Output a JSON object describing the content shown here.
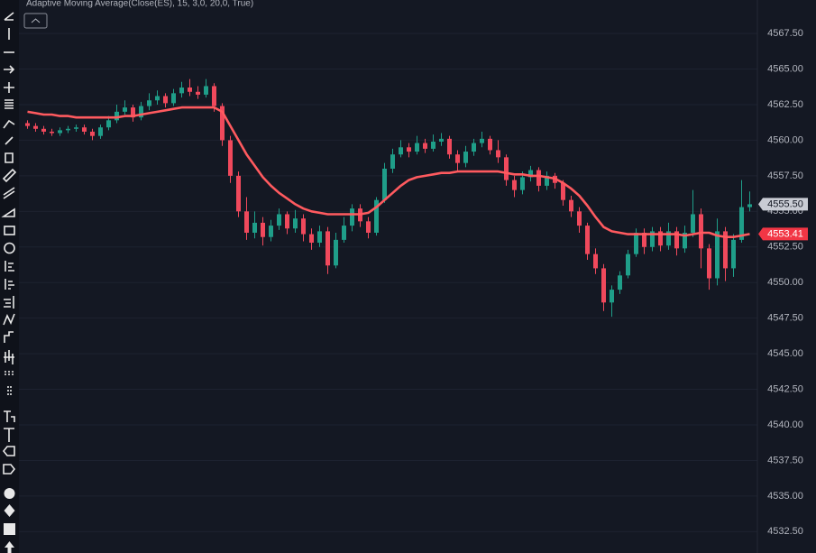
{
  "chart_data": {
    "type": "candlestick",
    "title": "Adaptive Moving Average(Close(ES), 15, 3,0, 20,0, True)",
    "up_color": "#1f9e89",
    "down_color": "#f0495c",
    "line_color": "#ff5a5f",
    "grid": true,
    "ylim": [
      4531.0,
      4569.85
    ],
    "yticks": [
      {
        "value": 4532.5,
        "label": "4532.50"
      },
      {
        "value": 4535,
        "label": "4535.00"
      },
      {
        "value": 4537.5,
        "label": "4537.50"
      },
      {
        "value": 4540,
        "label": "4540.00"
      },
      {
        "value": 4542.5,
        "label": "4542.50"
      },
      {
        "value": 4545,
        "label": "4545.00"
      },
      {
        "value": 4547.5,
        "label": "4547.50"
      },
      {
        "value": 4550,
        "label": "4550.00"
      },
      {
        "value": 4552.5,
        "label": "4552.50"
      },
      {
        "value": 4555,
        "label": "4555.00"
      },
      {
        "value": 4557.5,
        "label": "4557.50"
      },
      {
        "value": 4560,
        "label": "4560.00"
      },
      {
        "value": 4562.5,
        "label": "4562.50"
      },
      {
        "value": 4565,
        "label": "4565.00"
      },
      {
        "value": 4567.5,
        "label": "4567.50"
      }
    ],
    "open": [
      4561.2,
      4561.0,
      4560.8,
      4560.6,
      4560.5,
      4560.7,
      4560.8,
      4560.9,
      4560.6,
      4560.3,
      4560.9,
      4561.4,
      4562.0,
      4562.3,
      4561.6,
      4562.4,
      4562.8,
      4563.1,
      4562.6,
      4563.3,
      4563.7,
      4563.4,
      4563.2,
      4563.8,
      4562.4,
      4560.0,
      4557.5,
      4555.0,
      4553.5,
      4554.2,
      4553.2,
      4554.0,
      4554.8,
      4553.8,
      4554.5,
      4553.4,
      4552.8,
      4553.6,
      4551.2,
      4553.0,
      4554.0,
      4555.2,
      4554.3,
      4553.5,
      4555.8,
      4558.0,
      4559.0,
      4559.5,
      4559.2,
      4559.8,
      4559.4,
      4559.9,
      4560.1,
      4559.0,
      4558.4,
      4559.2,
      4559.8,
      4560.1,
      4559.3,
      4558.8,
      4557.2,
      4556.5,
      4557.4,
      4557.9,
      4556.8,
      4557.5,
      4557.0,
      4555.8,
      4555.0,
      4554.0,
      4552.0,
      4551.0,
      4548.6,
      4549.5,
      4550.5,
      4552.0,
      4553.5,
      4552.5,
      4553.6,
      4552.6,
      4553.6,
      4552.4,
      4553.5,
      4554.8,
      4552.4,
      4550.3,
      4553.6,
      4551.0,
      4553.0,
      4555.3
    ],
    "high": [
      4561.4,
      4561.2,
      4561.0,
      4560.8,
      4560.9,
      4561.0,
      4561.1,
      4561.1,
      4560.8,
      4561.1,
      4561.7,
      4562.5,
      4562.8,
      4562.5,
      4562.7,
      4563.3,
      4563.5,
      4563.3,
      4563.6,
      4564.1,
      4564.3,
      4563.8,
      4564.3,
      4564.0,
      4562.6,
      4560.3,
      4557.8,
      4556.0,
      4555.0,
      4554.6,
      4554.4,
      4555.2,
      4555.0,
      4555.1,
      4554.8,
      4553.8,
      4554.0,
      4553.9,
      4553.5,
      4554.6,
      4555.5,
      4555.5,
      4554.6,
      4556.0,
      4558.4,
      4559.4,
      4560.0,
      4559.8,
      4560.3,
      4560.1,
      4560.4,
      4560.5,
      4560.3,
      4559.3,
      4559.6,
      4560.1,
      4560.6,
      4560.3,
      4560.0,
      4559.0,
      4557.5,
      4557.8,
      4558.2,
      4558.1,
      4557.8,
      4557.7,
      4557.2,
      4556.1,
      4555.3,
      4554.2,
      4552.4,
      4551.3,
      4549.8,
      4550.8,
      4552.3,
      4553.8,
      4553.8,
      4553.9,
      4553.9,
      4554.2,
      4553.9,
      4554.0,
      4556.5,
      4555.2,
      4552.7,
      4554.5,
      4553.9,
      4553.4,
      4557.2,
      4556.4
    ],
    "low": [
      4560.8,
      4560.6,
      4560.4,
      4560.3,
      4560.3,
      4560.5,
      4560.6,
      4560.4,
      4560.0,
      4560.1,
      4560.7,
      4561.2,
      4561.8,
      4561.3,
      4561.4,
      4562.1,
      4562.5,
      4562.3,
      4562.4,
      4563.0,
      4563.1,
      4562.9,
      4563.0,
      4562.0,
      4559.6,
      4557.0,
      4554.6,
      4553.0,
      4553.1,
      4552.6,
      4552.9,
      4553.7,
      4553.4,
      4553.5,
      4552.9,
      4552.3,
      4552.5,
      4550.6,
      4551.0,
      4552.8,
      4553.6,
      4553.9,
      4553.1,
      4553.3,
      4555.6,
      4557.7,
      4558.8,
      4558.8,
      4559.0,
      4559.1,
      4559.2,
      4559.6,
      4558.7,
      4557.8,
      4558.1,
      4558.9,
      4559.5,
      4559.0,
      4558.4,
      4556.8,
      4556.0,
      4556.2,
      4557.1,
      4556.4,
      4556.5,
      4556.6,
      4555.4,
      4554.6,
      4553.5,
      4551.6,
      4550.6,
      4548.0,
      4547.6,
      4549.2,
      4550.3,
      4551.8,
      4552.0,
      4552.2,
      4552.2,
      4552.3,
      4551.9,
      4552.1,
      4553.2,
      4551.0,
      4549.5,
      4549.8,
      4550.1,
      4550.4,
      4552.8,
      4555.0
    ],
    "close": [
      4561.0,
      4560.8,
      4560.6,
      4560.5,
      4560.7,
      4560.8,
      4560.9,
      4560.6,
      4560.3,
      4560.9,
      4561.4,
      4562.0,
      4562.3,
      4561.6,
      4562.4,
      4562.8,
      4563.1,
      4562.6,
      4563.3,
      4563.7,
      4563.4,
      4563.2,
      4563.8,
      4562.4,
      4560.0,
      4557.5,
      4555.0,
      4553.5,
      4554.2,
      4553.2,
      4554.0,
      4554.8,
      4553.8,
      4554.5,
      4553.4,
      4552.8,
      4553.6,
      4551.2,
      4553.0,
      4554.0,
      4555.2,
      4554.3,
      4553.5,
      4555.8,
      4558.0,
      4559.0,
      4559.5,
      4559.2,
      4559.8,
      4559.4,
      4559.9,
      4560.1,
      4559.0,
      4558.4,
      4559.2,
      4559.8,
      4560.1,
      4559.3,
      4558.8,
      4557.2,
      4556.5,
      4557.4,
      4557.9,
      4556.8,
      4557.5,
      4557.0,
      4555.8,
      4555.0,
      4554.0,
      4552.0,
      4551.0,
      4548.6,
      4549.5,
      4550.5,
      4552.0,
      4553.5,
      4552.5,
      4553.6,
      4552.6,
      4553.6,
      4552.4,
      4553.5,
      4554.8,
      4552.4,
      4550.3,
      4553.6,
      4551.0,
      4553.0,
      4555.3,
      4555.5
    ],
    "ama": [
      4562.0,
      4561.9,
      4561.8,
      4561.8,
      4561.7,
      4561.7,
      4561.6,
      4561.6,
      4561.6,
      4561.6,
      4561.6,
      4561.6,
      4561.7,
      4561.7,
      4561.8,
      4561.9,
      4562.0,
      4562.1,
      4562.2,
      4562.3,
      4562.3,
      4562.3,
      4562.3,
      4562.3,
      4562.0,
      4561.0,
      4560.0,
      4559.0,
      4558.2,
      4557.4,
      4556.8,
      4556.3,
      4555.9,
      4555.5,
      4555.2,
      4555.0,
      4554.9,
      4554.8,
      4554.8,
      4554.8,
      4554.8,
      4554.8,
      4554.9,
      4555.3,
      4555.8,
      4556.3,
      4556.8,
      4557.2,
      4557.4,
      4557.5,
      4557.6,
      4557.7,
      4557.7,
      4557.8,
      4557.8,
      4557.8,
      4557.8,
      4557.8,
      4557.8,
      4557.7,
      4557.6,
      4557.6,
      4557.5,
      4557.5,
      4557.4,
      4557.3,
      4557.0,
      4556.6,
      4556.1,
      4555.4,
      4554.6,
      4553.9,
      4553.6,
      4553.5,
      4553.4,
      4553.4,
      4553.4,
      4553.4,
      4553.4,
      4553.4,
      4553.4,
      4553.3,
      4553.4,
      4553.5,
      4553.5,
      4553.3,
      4553.2,
      4553.2,
      4553.3,
      4553.41
    ],
    "price_labels": [
      {
        "value": 4555.5,
        "label": "4555.50",
        "color": "#c9ccd4",
        "text_color": "#131722"
      },
      {
        "value": 4553.41,
        "label": "4553.41",
        "color": "#f23645",
        "text_color": "#ffffff"
      }
    ]
  }
}
